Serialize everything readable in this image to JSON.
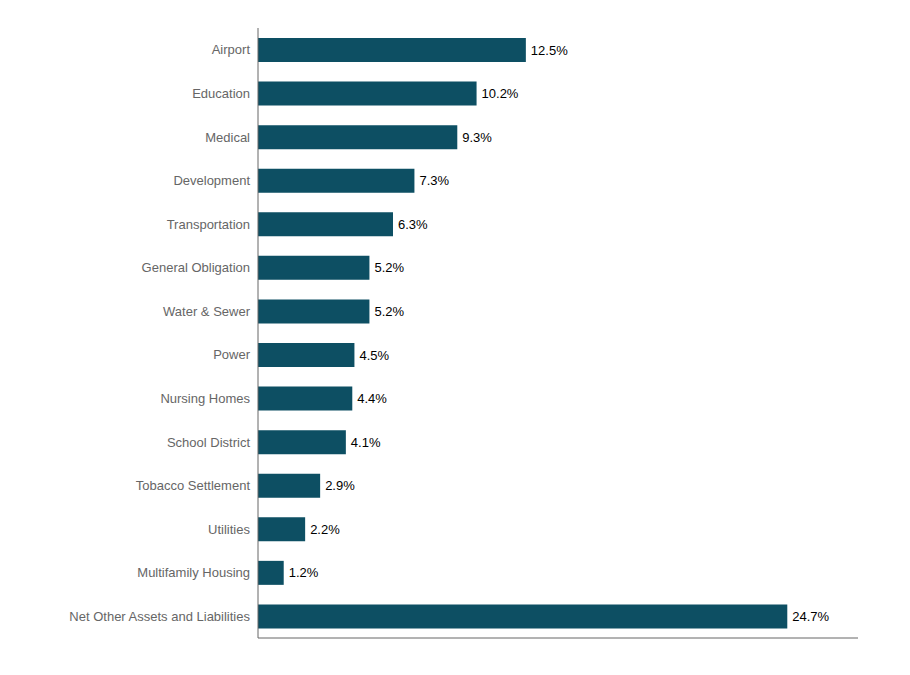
{
  "chart_data": {
    "type": "bar",
    "orientation": "horizontal",
    "categories": [
      "Net Other Assets and Liabilities",
      "Multifamily Housing",
      "Utilities",
      "Tobacco Settlement",
      "School District",
      "Nursing Homes",
      "Power",
      "Water & Sewer",
      "General Obligation",
      "Transportation",
      "Development",
      "Medical",
      "Education",
      "Airport"
    ],
    "values": [
      24.7,
      1.2,
      2.2,
      2.9,
      4.1,
      4.4,
      4.5,
      5.2,
      5.2,
      6.3,
      7.3,
      9.3,
      10.2,
      12.5
    ],
    "value_labels": [
      "24.7%",
      "1.2%",
      "2.2%",
      "2.9%",
      "4.1%",
      "4.4%",
      "4.5%",
      "5.2%",
      "5.2%",
      "6.3%",
      "7.3%",
      "9.3%",
      "10.2%",
      "12.5%"
    ],
    "data_labels": true,
    "color": "#0d4f63",
    "xlim": [
      0,
      28
    ],
    "xticks": [],
    "tick_labels": "y",
    "grid": false
  }
}
